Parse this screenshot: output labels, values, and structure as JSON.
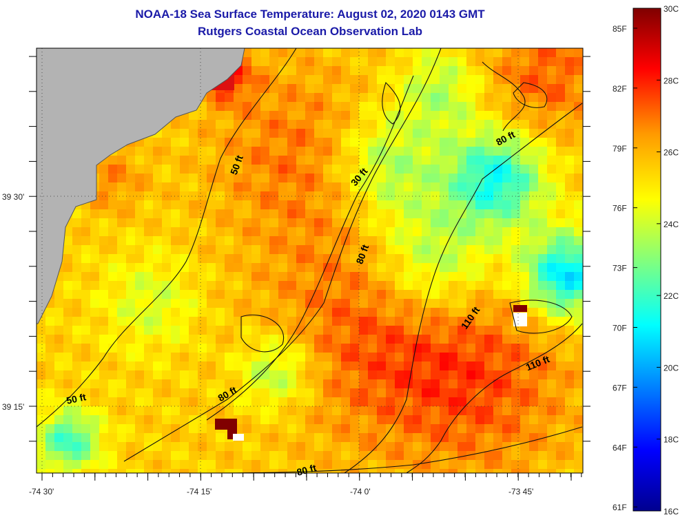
{
  "header": {
    "title": "NOAA-18 Sea Surface Temperature:  August 02, 2020 0143 GMT",
    "subtitle": "Rutgers Coastal Ocean Observation Lab"
  },
  "map": {
    "lon_ticks": [
      "-74 30'",
      "-74 15'",
      "-74 0'",
      "-73 45'"
    ],
    "lat_ticks": [
      "39 30'",
      "39 15'"
    ],
    "contour_labels": [
      "50 ft",
      "30 ft",
      "80 ft",
      "80 ft",
      "110 ft",
      "110 ft",
      "80 ft",
      "50 ft",
      "80 ft"
    ],
    "colors": {
      "land": "#b3b3b3",
      "grid": "#333333",
      "frame": "#000000"
    }
  },
  "colorbar": {
    "celsius_labels": [
      "30C",
      "28C",
      "26C",
      "24C",
      "22C",
      "20C",
      "18C",
      "16C"
    ],
    "fahrenheit_labels": [
      "85F",
      "82F",
      "79F",
      "76F",
      "73F",
      "70F",
      "67F",
      "64F",
      "61F"
    ],
    "colormap": [
      "#00008f",
      "#0000ff",
      "#00ffff",
      "#ffff00",
      "#ff7f00",
      "#ff0000",
      "#800000"
    ]
  }
}
